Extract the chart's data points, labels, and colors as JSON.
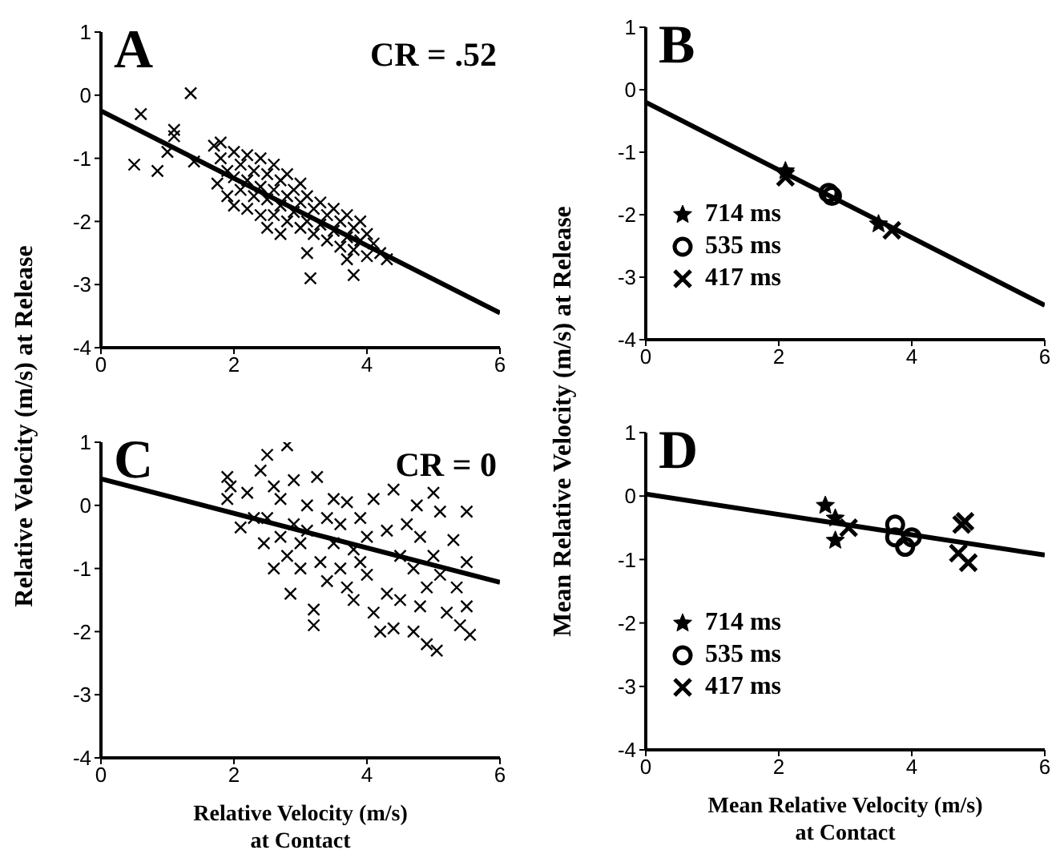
{
  "chart_data": [
    {
      "type": "scatter",
      "title": "A",
      "ylabel": "Relative Velocity (m/s) at Release",
      "annotations": [
        "CR = .52"
      ],
      "xlim": [
        0,
        6
      ],
      "xticks": [
        0,
        2,
        4,
        6
      ],
      "ylim": [
        -4,
        1
      ],
      "yticks": [
        -4,
        -3,
        -2,
        -1,
        0,
        1
      ],
      "grid": false,
      "series": [
        {
          "marker": "cross",
          "color": "#000000",
          "x": [
            0.5,
            0.6,
            0.85,
            1.0,
            1.1,
            1.1,
            1.35,
            1.4,
            1.7,
            1.75,
            1.8,
            1.8,
            1.9,
            1.9,
            2.0,
            2.0,
            2.0,
            2.1,
            2.1,
            2.2,
            2.2,
            2.2,
            2.3,
            2.3,
            2.4,
            2.4,
            2.4,
            2.5,
            2.5,
            2.5,
            2.6,
            2.6,
            2.6,
            2.7,
            2.7,
            2.7,
            2.8,
            2.8,
            2.8,
            2.9,
            2.9,
            3.0,
            3.0,
            3.0,
            3.1,
            3.1,
            3.1,
            3.15,
            3.2,
            3.2,
            3.3,
            3.3,
            3.4,
            3.4,
            3.5,
            3.5,
            3.6,
            3.6,
            3.7,
            3.7,
            3.7,
            3.8,
            3.8,
            3.8,
            3.9,
            3.9,
            4.0,
            4.0,
            4.1,
            4.2,
            4.3
          ],
          "values": [
            -1.1,
            -0.3,
            -1.2,
            -0.9,
            -0.55,
            -0.65,
            0.03,
            -1.05,
            -0.8,
            -1.4,
            -1.0,
            -0.75,
            -1.2,
            -1.6,
            -0.9,
            -1.3,
            -1.75,
            -1.1,
            -1.5,
            -0.95,
            -1.35,
            -1.8,
            -1.2,
            -1.6,
            -1.0,
            -1.45,
            -1.9,
            -1.25,
            -1.65,
            -2.1,
            -1.1,
            -1.5,
            -1.9,
            -1.35,
            -1.75,
            -2.2,
            -1.25,
            -1.6,
            -2.0,
            -1.5,
            -1.85,
            -1.4,
            -1.7,
            -2.1,
            -1.6,
            -2.0,
            -2.5,
            -2.9,
            -1.8,
            -2.2,
            -1.7,
            -2.05,
            -1.9,
            -2.3,
            -1.8,
            -2.15,
            -2.0,
            -2.4,
            -1.9,
            -2.25,
            -2.6,
            -2.1,
            -2.85,
            -2.45,
            -2.0,
            -2.3,
            -2.2,
            -2.55,
            -2.35,
            -2.5,
            -2.6
          ]
        },
        {
          "type": "line",
          "color": "#000000",
          "x": [
            0,
            6
          ],
          "values": [
            -0.25,
            -3.45
          ]
        }
      ]
    },
    {
      "type": "scatter",
      "title": "B",
      "ylabel": "Mean Relative Velocity (m/s) at Release",
      "xlim": [
        0,
        6
      ],
      "xticks": [
        0,
        2,
        4,
        6
      ],
      "ylim": [
        -4,
        1
      ],
      "yticks": [
        -4,
        -3,
        -2,
        -1,
        0,
        1
      ],
      "grid": false,
      "legend": "left",
      "series": [
        {
          "name": "714 ms",
          "marker": "star",
          "color": "#000000",
          "x": [
            2.1,
            3.5
          ],
          "values": [
            -1.3,
            -2.15
          ]
        },
        {
          "name": "535 ms",
          "marker": "circle",
          "color": "#000000",
          "x": [
            2.75,
            2.8
          ],
          "values": [
            -1.65,
            -1.7
          ]
        },
        {
          "name": "417 ms",
          "marker": "cross",
          "color": "#000000",
          "x": [
            2.1,
            3.7
          ],
          "values": [
            -1.4,
            -2.25
          ]
        },
        {
          "type": "line",
          "color": "#000000",
          "x": [
            0,
            6
          ],
          "values": [
            -0.2,
            -3.45
          ]
        }
      ]
    },
    {
      "type": "scatter",
      "title": "C",
      "xlabel": "Relative Velocity (m/s)\nat Contact",
      "annotations": [
        "CR = 0"
      ],
      "xlim": [
        0,
        6
      ],
      "xticks": [
        0,
        2,
        4,
        6
      ],
      "ylim": [
        -4,
        1
      ],
      "yticks": [
        -4,
        -3,
        -2,
        -1,
        0,
        1
      ],
      "grid": false,
      "series": [
        {
          "marker": "cross",
          "color": "#000000",
          "x": [
            1.9,
            1.9,
            1.95,
            2.1,
            2.2,
            2.3,
            2.4,
            2.45,
            2.5,
            2.5,
            2.6,
            2.6,
            2.7,
            2.7,
            2.8,
            2.8,
            2.85,
            2.9,
            2.9,
            3.0,
            3.0,
            3.1,
            3.1,
            3.2,
            3.2,
            3.25,
            3.3,
            3.4,
            3.4,
            3.5,
            3.5,
            3.6,
            3.6,
            3.7,
            3.7,
            3.8,
            3.8,
            3.9,
            3.9,
            4.0,
            4.0,
            4.1,
            4.1,
            4.2,
            4.3,
            4.3,
            4.4,
            4.4,
            4.5,
            4.5,
            4.6,
            4.7,
            4.7,
            4.75,
            4.8,
            4.8,
            4.9,
            4.9,
            5.0,
            5.0,
            5.05,
            5.1,
            5.1,
            5.2,
            5.3,
            5.35,
            5.4,
            5.5,
            5.5,
            5.5,
            5.55
          ],
          "values": [
            0.45,
            0.1,
            0.3,
            -0.35,
            0.2,
            -0.2,
            0.55,
            -0.6,
            0.8,
            -0.2,
            -1.0,
            0.3,
            -0.5,
            0.1,
            0.95,
            -0.8,
            -1.4,
            -0.3,
            0.4,
            -0.6,
            -1.0,
            0.0,
            -0.4,
            -1.65,
            -1.9,
            0.45,
            -0.9,
            -0.2,
            -1.2,
            0.1,
            -0.6,
            -1.0,
            -0.3,
            -1.3,
            0.05,
            -0.7,
            -1.5,
            -0.2,
            -0.9,
            -1.1,
            -0.5,
            0.1,
            -1.7,
            -2.0,
            -0.4,
            -1.4,
            0.25,
            -1.95,
            -0.8,
            -1.5,
            -0.3,
            -1.0,
            -2.0,
            0.0,
            -1.6,
            -0.5,
            -1.3,
            -2.2,
            -0.8,
            0.2,
            -2.3,
            -1.1,
            -0.1,
            -1.7,
            -0.55,
            -1.3,
            -1.9,
            -0.1,
            -0.9,
            -1.6,
            -2.05
          ]
        },
        {
          "type": "line",
          "color": "#000000",
          "x": [
            0,
            6
          ],
          "values": [
            0.42,
            -1.22
          ]
        }
      ]
    },
    {
      "type": "scatter",
      "title": "D",
      "xlabel": "Mean Relative Velocity (m/s)\nat Contact",
      "xlim": [
        0,
        6
      ],
      "xticks": [
        0,
        2,
        4,
        6
      ],
      "ylim": [
        -4,
        1
      ],
      "yticks": [
        -4,
        -3,
        -2,
        -1,
        0,
        1
      ],
      "grid": false,
      "legend": "left",
      "series": [
        {
          "name": "714 ms",
          "marker": "star",
          "color": "#000000",
          "x": [
            2.7,
            2.85,
            2.85
          ],
          "values": [
            -0.15,
            -0.35,
            -0.7
          ]
        },
        {
          "name": "535 ms",
          "marker": "circle",
          "color": "#000000",
          "x": [
            3.75,
            3.75,
            3.9,
            4.0
          ],
          "values": [
            -0.45,
            -0.65,
            -0.8,
            -0.65
          ]
        },
        {
          "name": "417 ms",
          "marker": "cross",
          "color": "#000000",
          "x": [
            3.05,
            4.8,
            4.75,
            4.7,
            4.85
          ],
          "values": [
            -0.5,
            -0.4,
            -0.45,
            -0.9,
            -1.05
          ]
        },
        {
          "type": "line",
          "color": "#000000",
          "x": [
            0,
            6
          ],
          "values": [
            0.03,
            -0.93
          ]
        }
      ]
    }
  ]
}
